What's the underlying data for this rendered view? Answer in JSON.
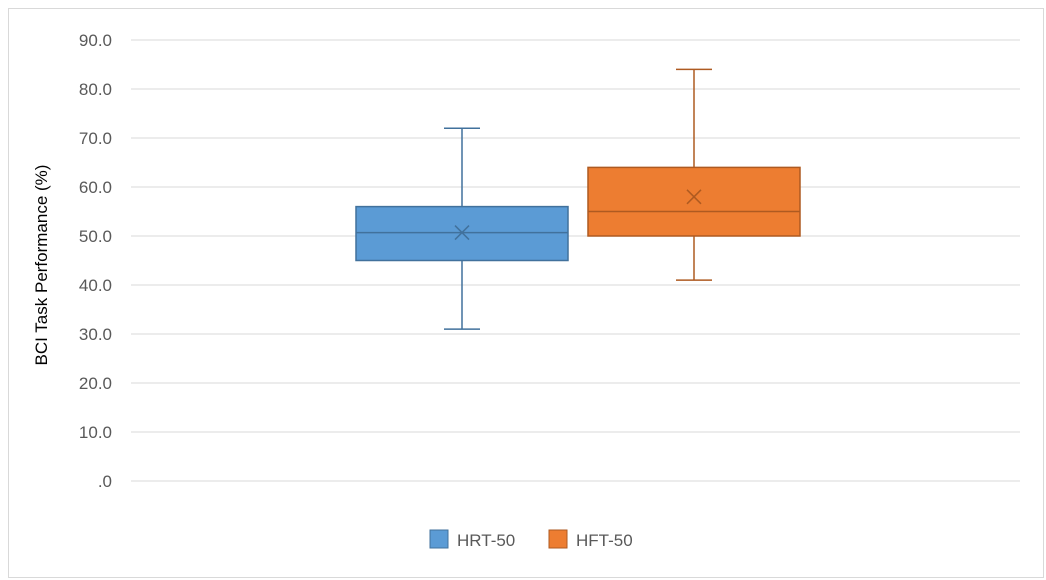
{
  "chart_data": {
    "type": "box",
    "title": "",
    "xlabel": "",
    "ylabel": "BCI Task Performance (%)",
    "ylim": [
      0,
      90
    ],
    "yticks": [
      ".0",
      "10.0",
      "20.0",
      "30.0",
      "40.0",
      "50.0",
      "60.0",
      "70.0",
      "80.0",
      "90.0"
    ],
    "grid": true,
    "legend_position": "bottom",
    "series": [
      {
        "name": "HRT-50",
        "color": "#5b9bd5",
        "edge": "#41719c",
        "min": 31,
        "q1": 45,
        "median": 50.7,
        "q3": 56,
        "max": 72,
        "mean": 50.7
      },
      {
        "name": "HFT-50",
        "color": "#ed7d31",
        "edge": "#ae5a21",
        "min": 41,
        "q1": 50,
        "median": 55,
        "q3": 64,
        "max": 84,
        "mean": 58
      }
    ]
  }
}
